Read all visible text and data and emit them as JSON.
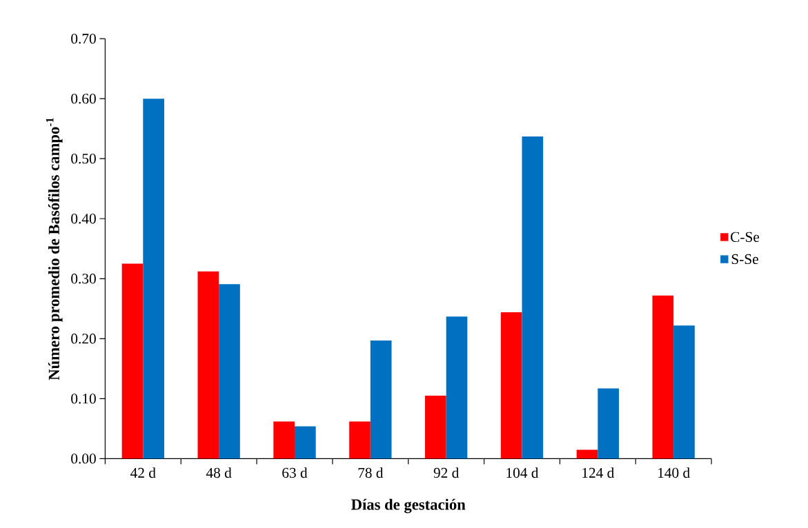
{
  "chart_data": {
    "type": "bar",
    "xlabel": "Días de gestación",
    "ylabel": "Número promedio de Basófilos campo$^{-1}$",
    "categories": [
      "42 d",
      "48 d",
      "63 d",
      "78 d",
      "92 d",
      "104 d",
      "124 d",
      "140 d"
    ],
    "series": [
      {
        "name": "C-Se",
        "color": "#ff0000",
        "values": [
          0.325,
          0.312,
          0.062,
          0.062,
          0.105,
          0.244,
          0.015,
          0.272
        ]
      },
      {
        "name": "S-Se",
        "color": "#0070c0",
        "values": [
          0.6,
          0.291,
          0.054,
          0.197,
          0.237,
          0.537,
          0.117,
          0.222
        ]
      }
    ],
    "ylim": [
      0,
      0.7
    ],
    "yticks": [
      {
        "value": 0,
        "label": "0.00"
      },
      {
        "value": 0.1,
        "label": "0.10"
      },
      {
        "value": 0.2,
        "label": "0.20"
      },
      {
        "value": 0.3,
        "label": "0.30"
      },
      {
        "value": 0.4,
        "label": "0.40"
      },
      {
        "value": 0.5,
        "label": "0.50"
      },
      {
        "value": 0.6,
        "label": "0.60"
      },
      {
        "value": 0.7,
        "label": "0.70"
      }
    ],
    "legend": "right"
  }
}
